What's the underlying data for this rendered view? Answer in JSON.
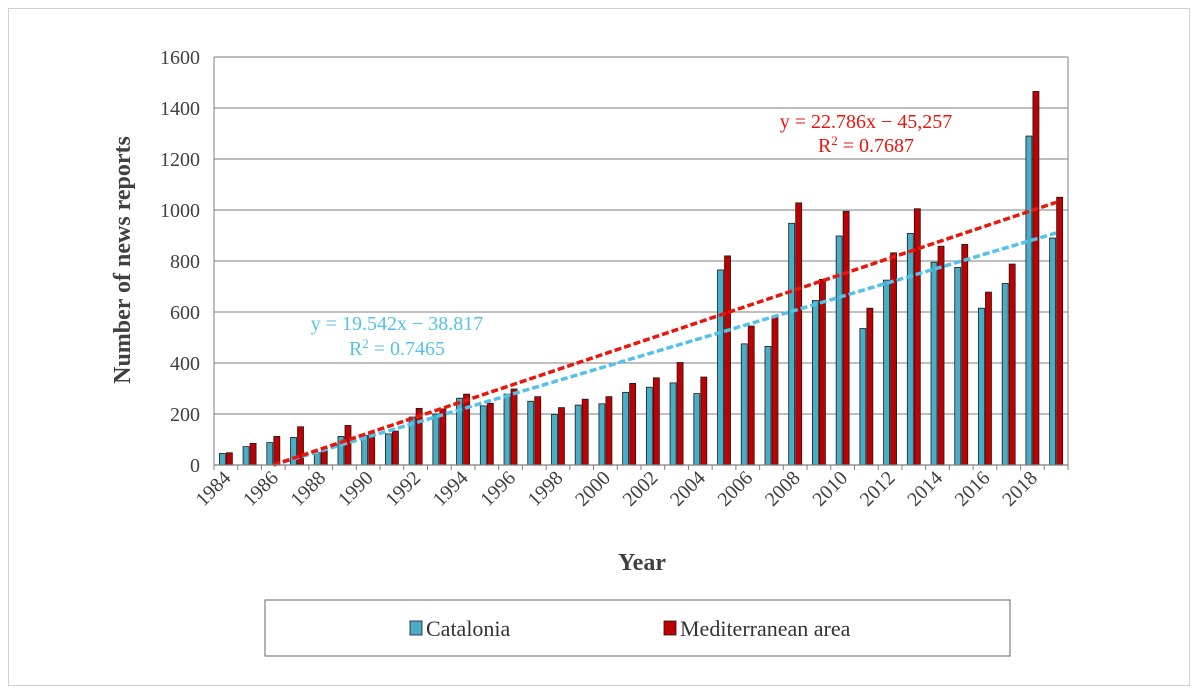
{
  "chart_data": {
    "type": "bar",
    "xlabel": "Year",
    "ylabel": "Number  of news reports",
    "ylim": [
      0,
      1600
    ],
    "yticks": [
      "0",
      "200",
      "400",
      "600",
      "800",
      "1000",
      "1200",
      "1400",
      "1600"
    ],
    "x_tick_labels": [
      "1984",
      "1986",
      "1988",
      "1990",
      "1992",
      "1994",
      "1996",
      "1998",
      "2000",
      "2002",
      "2004",
      "2006",
      "2008",
      "2010",
      "2012",
      "2014",
      "2016",
      "2018"
    ],
    "grid": "horizontal",
    "legend_position": "bottom",
    "categories": [
      1984,
      1985,
      1986,
      1987,
      1988,
      1989,
      1990,
      1991,
      1992,
      1993,
      1994,
      1995,
      1996,
      1997,
      1998,
      1999,
      2000,
      2001,
      2002,
      2003,
      2004,
      2005,
      2006,
      2007,
      2008,
      2009,
      2010,
      2011,
      2012,
      2013,
      2014,
      2015,
      2016,
      2017,
      2018,
      2019
    ],
    "series": [
      {
        "name": "Catalonia",
        "color": "#4bacc6",
        "values": [
          45,
          72,
          88,
          108,
          48,
          112,
          115,
          122,
          188,
          200,
          262,
          232,
          278,
          250,
          198,
          235,
          240,
          285,
          305,
          322,
          280,
          765,
          475,
          465,
          948,
          645,
          898,
          535,
          725,
          908,
          795,
          775,
          615,
          712,
          1290,
          890
        ]
      },
      {
        "name": "Mediterranean area",
        "color": "#c00000",
        "values": [
          48,
          85,
          112,
          150,
          55,
          155,
          125,
          133,
          222,
          220,
          278,
          242,
          298,
          268,
          225,
          258,
          268,
          320,
          342,
          402,
          345,
          820,
          545,
          582,
          1028,
          728,
          995,
          615,
          832,
          1005,
          858,
          865,
          678,
          788,
          1465,
          1050
        ]
      }
    ],
    "trendlines": [
      {
        "series": "Catalonia",
        "equation": "y = 19.542x − 38.817",
        "r2_prefix": "R",
        "r2_sup": "2",
        "r2_value": " = 0.7465",
        "color": "#56c1e8",
        "from": [
          1986,
          0
        ],
        "to": [
          2019,
          910
        ]
      },
      {
        "series": "Mediterranean area",
        "equation": "y = 22.786x − 45,257",
        "r2_prefix": "R",
        "r2_sup": "2",
        "r2_value": " = 0.7687",
        "color": "#e8160c",
        "from": [
          1986,
          0
        ],
        "to": [
          2019,
          1030
        ]
      }
    ]
  }
}
